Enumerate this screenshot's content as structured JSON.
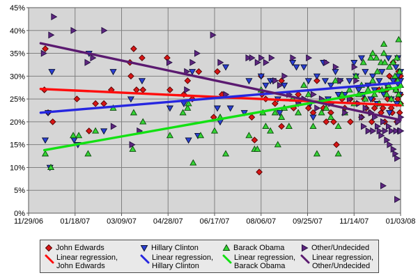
{
  "colors": {
    "canvas_bg": "#ffffff",
    "plot_bg": "#d6d6d6",
    "gridline": "#808080",
    "axis_line": "#5a5a5a",
    "axis_text": "#000000",
    "legend_bg": "#e9e9e9",
    "legend_border": "#4a4a4a"
  },
  "legend": {
    "regression_prefix": "Linear regression,"
  },
  "chart_data": {
    "type": "scatter",
    "title": "",
    "xlabel": "",
    "ylabel": "",
    "grid": true,
    "legend_position": "bottom",
    "x_axis": {
      "unit": "days since 11/29/06",
      "min_day": 0,
      "max_day": 400,
      "tick_days": [
        0,
        50,
        100,
        150,
        200,
        250,
        300,
        350,
        400
      ],
      "tick_labels": [
        "11/29/06",
        "01/18/07",
        "03/09/07",
        "04/28/07",
        "06/17/07",
        "08/06/07",
        "09/25/07",
        "11/14/07",
        "01/03/08"
      ]
    },
    "y_axis": {
      "min": 0,
      "max": 45,
      "step": 5,
      "tick_suffix": "%",
      "tick_labels": [
        "0%",
        "5%",
        "10%",
        "15%",
        "20%",
        "25%",
        "30%",
        "35%",
        "40%",
        "45%"
      ]
    },
    "series": [
      {
        "name": "John Edwards",
        "marker": "diamond",
        "marker_fill": "#d81616",
        "marker_stroke": "#500000",
        "points": [
          [
            17,
            27
          ],
          [
            18,
            36
          ],
          [
            21,
            22
          ],
          [
            26,
            20
          ],
          [
            52,
            25
          ],
          [
            65,
            18
          ],
          [
            72,
            24
          ],
          [
            81,
            24
          ],
          [
            89,
            27
          ],
          [
            109,
            33
          ],
          [
            110,
            30
          ],
          [
            113,
            36
          ],
          [
            116,
            27
          ],
          [
            122,
            34
          ],
          [
            123,
            27
          ],
          [
            149,
            34
          ],
          [
            152,
            27
          ],
          [
            167,
            26
          ],
          [
            171,
            29
          ],
          [
            176,
            25
          ],
          [
            183,
            31
          ],
          [
            199,
            21
          ],
          [
            203,
            31
          ],
          [
            208,
            26
          ],
          [
            240,
            21
          ],
          [
            243,
            16
          ],
          [
            248,
            9
          ],
          [
            250,
            30
          ],
          [
            251,
            26
          ],
          [
            255,
            25
          ],
          [
            265,
            24
          ],
          [
            272,
            29
          ],
          [
            272,
            19
          ],
          [
            285,
            23
          ],
          [
            290,
            26
          ],
          [
            301,
            23
          ],
          [
            306,
            22
          ],
          [
            310,
            29
          ],
          [
            317,
            23
          ],
          [
            320,
            20
          ],
          [
            325,
            22
          ],
          [
            328,
            20
          ],
          [
            331,
            15
          ],
          [
            337,
            25
          ],
          [
            340,
            23
          ],
          [
            346,
            25
          ],
          [
            346,
            20
          ],
          [
            353,
            24
          ],
          [
            358,
            21
          ],
          [
            361,
            25
          ],
          [
            363,
            23
          ],
          [
            367,
            22
          ],
          [
            369,
            20
          ],
          [
            370,
            25
          ],
          [
            372,
            23
          ],
          [
            377,
            27
          ],
          [
            379,
            22
          ],
          [
            381,
            23
          ],
          [
            383,
            20
          ],
          [
            385,
            27
          ],
          [
            386,
            25
          ],
          [
            388,
            30
          ],
          [
            390,
            23
          ],
          [
            391,
            22
          ],
          [
            392,
            33
          ],
          [
            394,
            29
          ],
          [
            395,
            27
          ],
          [
            396,
            20
          ],
          [
            397,
            25
          ],
          [
            398,
            31
          ],
          [
            399,
            22
          ],
          [
            400,
            26
          ],
          [
            400,
            30
          ],
          [
            400,
            24
          ]
        ]
      },
      {
        "name": "Hillary Clinton",
        "marker": "triangle-down",
        "marker_fill": "#2a3fd4",
        "marker_stroke": "#0a1030",
        "points": [
          [
            18,
            16
          ],
          [
            21,
            22
          ],
          [
            23,
            10
          ],
          [
            25,
            31
          ],
          [
            49,
            16
          ],
          [
            53,
            15
          ],
          [
            65,
            35
          ],
          [
            81,
            18
          ],
          [
            91,
            31
          ],
          [
            110,
            25
          ],
          [
            122,
            29
          ],
          [
            152,
            23
          ],
          [
            167,
            24
          ],
          [
            172,
            16
          ],
          [
            176,
            31
          ],
          [
            182,
            17
          ],
          [
            203,
            23
          ],
          [
            206,
            20
          ],
          [
            212,
            32
          ],
          [
            217,
            23
          ],
          [
            232,
            22
          ],
          [
            237,
            29
          ],
          [
            250,
            30
          ],
          [
            255,
            28
          ],
          [
            260,
            29
          ],
          [
            263,
            29
          ],
          [
            268,
            25
          ],
          [
            270,
            22
          ],
          [
            275,
            28
          ],
          [
            284,
            33
          ],
          [
            288,
            32
          ],
          [
            290,
            24
          ],
          [
            296,
            32
          ],
          [
            301,
            29
          ],
          [
            303,
            24
          ],
          [
            306,
            21
          ],
          [
            310,
            30
          ],
          [
            317,
            33
          ],
          [
            319,
            29
          ],
          [
            322,
            25
          ],
          [
            325,
            28
          ],
          [
            330,
            31
          ],
          [
            333,
            26
          ],
          [
            335,
            29
          ],
          [
            340,
            26
          ],
          [
            345,
            29
          ],
          [
            350,
            33
          ],
          [
            352,
            30
          ],
          [
            355,
            27
          ],
          [
            358,
            34
          ],
          [
            360,
            26
          ],
          [
            362,
            31
          ],
          [
            365,
            28
          ],
          [
            368,
            25
          ],
          [
            370,
            30
          ],
          [
            372,
            27
          ],
          [
            375,
            24
          ],
          [
            377,
            29
          ],
          [
            380,
            31
          ],
          [
            382,
            26
          ],
          [
            385,
            28
          ],
          [
            387,
            34
          ],
          [
            388,
            22
          ],
          [
            390,
            25
          ],
          [
            392,
            29
          ],
          [
            394,
            27
          ],
          [
            395,
            32
          ],
          [
            396,
            24
          ],
          [
            397,
            34
          ],
          [
            397,
            30
          ],
          [
            398,
            28
          ],
          [
            399,
            26
          ],
          [
            400,
            29
          ],
          [
            400,
            31
          ]
        ]
      },
      {
        "name": "Barack Obama",
        "marker": "triangle-up",
        "marker_fill": "#35d435",
        "marker_stroke": "#0a4a0a",
        "points": [
          [
            18,
            13
          ],
          [
            24,
            10
          ],
          [
            48,
            17
          ],
          [
            54,
            17
          ],
          [
            64,
            13
          ],
          [
            72,
            18
          ],
          [
            91,
            23
          ],
          [
            112,
            14
          ],
          [
            113,
            22
          ],
          [
            123,
            20
          ],
          [
            152,
            17
          ],
          [
            166,
            22
          ],
          [
            171,
            23
          ],
          [
            172,
            24
          ],
          [
            177,
            11
          ],
          [
            185,
            17
          ],
          [
            200,
            18
          ],
          [
            206,
            21
          ],
          [
            212,
            13
          ],
          [
            237,
            17
          ],
          [
            243,
            14
          ],
          [
            246,
            14
          ],
          [
            250,
            27
          ],
          [
            252,
            22
          ],
          [
            255,
            19
          ],
          [
            260,
            18
          ],
          [
            265,
            22
          ],
          [
            268,
            15
          ],
          [
            272,
            21
          ],
          [
            275,
            23
          ],
          [
            280,
            19
          ],
          [
            284,
            25
          ],
          [
            290,
            22
          ],
          [
            296,
            28
          ],
          [
            301,
            26
          ],
          [
            306,
            19
          ],
          [
            310,
            13
          ],
          [
            315,
            22
          ],
          [
            320,
            23
          ],
          [
            325,
            21
          ],
          [
            330,
            29
          ],
          [
            333,
            19
          ],
          [
            333,
            13
          ],
          [
            337,
            26
          ],
          [
            340,
            22
          ],
          [
            345,
            27
          ],
          [
            350,
            24
          ],
          [
            352,
            30
          ],
          [
            355,
            26
          ],
          [
            358,
            28
          ],
          [
            360,
            33
          ],
          [
            362,
            25
          ],
          [
            365,
            27
          ],
          [
            368,
            34
          ],
          [
            370,
            35
          ],
          [
            370,
            29
          ],
          [
            372,
            26
          ],
          [
            374,
            34
          ],
          [
            375,
            31
          ],
          [
            377,
            24
          ],
          [
            379,
            33
          ],
          [
            380,
            27
          ],
          [
            382,
            37
          ],
          [
            382,
            35
          ],
          [
            383,
            33
          ],
          [
            385,
            26
          ],
          [
            387,
            28
          ],
          [
            388,
            32
          ],
          [
            390,
            25
          ],
          [
            392,
            33
          ],
          [
            394,
            30
          ],
          [
            395,
            27
          ],
          [
            396,
            34
          ],
          [
            397,
            29
          ],
          [
            398,
            38
          ],
          [
            398,
            26
          ],
          [
            399,
            31
          ],
          [
            400,
            28
          ],
          [
            400,
            24
          ]
        ]
      },
      {
        "name": "Other/Undecided",
        "marker": "triangle-right",
        "marker_fill": "#5e2580",
        "marker_stroke": "#241040",
        "points": [
          [
            16,
            35
          ],
          [
            24,
            39
          ],
          [
            27,
            43
          ],
          [
            48,
            40
          ],
          [
            63,
            33
          ],
          [
            69,
            34
          ],
          [
            81,
            40
          ],
          [
            91,
            19
          ],
          [
            111,
            15
          ],
          [
            119,
            18
          ],
          [
            151,
            33
          ],
          [
            170,
            31
          ],
          [
            170,
            27
          ],
          [
            176,
            33
          ],
          [
            181,
            35
          ],
          [
            198,
            39
          ],
          [
            206,
            33
          ],
          [
            212,
            26
          ],
          [
            236,
            34
          ],
          [
            240,
            34
          ],
          [
            246,
            33
          ],
          [
            250,
            34
          ],
          [
            255,
            33
          ],
          [
            261,
            34
          ],
          [
            265,
            29
          ],
          [
            270,
            28
          ],
          [
            275,
            30
          ],
          [
            280,
            26
          ],
          [
            284,
            34
          ],
          [
            290,
            24
          ],
          [
            296,
            25
          ],
          [
            301,
            34
          ],
          [
            306,
            26
          ],
          [
            310,
            23
          ],
          [
            315,
            25
          ],
          [
            320,
            33
          ],
          [
            325,
            24
          ],
          [
            330,
            32
          ],
          [
            335,
            29
          ],
          [
            340,
            22
          ],
          [
            345,
            25
          ],
          [
            350,
            32
          ],
          [
            352,
            29
          ],
          [
            355,
            24
          ],
          [
            358,
            21
          ],
          [
            360,
            19
          ],
          [
            362,
            23
          ],
          [
            365,
            18
          ],
          [
            368,
            22
          ],
          [
            370,
            18
          ],
          [
            372,
            21
          ],
          [
            375,
            19
          ],
          [
            377,
            18
          ],
          [
            379,
            17
          ],
          [
            381,
            20
          ],
          [
            381,
            6
          ],
          [
            383,
            18
          ],
          [
            385,
            16
          ],
          [
            387,
            19
          ],
          [
            388,
            15
          ],
          [
            390,
            18
          ],
          [
            392,
            14
          ],
          [
            394,
            13
          ],
          [
            395,
            18
          ],
          [
            396,
            12
          ],
          [
            396,
            3
          ],
          [
            397,
            20
          ],
          [
            399,
            18
          ],
          [
            400,
            21
          ],
          [
            400,
            18
          ]
        ]
      }
    ],
    "regressions": [
      {
        "series": "John Edwards",
        "color": "#ff0d0d",
        "x": [
          13,
          400
        ],
        "y": [
          27.2,
          23.6
        ]
      },
      {
        "series": "Hillary Clinton",
        "color": "#2626e0",
        "x": [
          13,
          400
        ],
        "y": [
          22.0,
          28.6
        ]
      },
      {
        "series": "Barack Obama",
        "color": "#12e112",
        "x": [
          17,
          400
        ],
        "y": [
          13.8,
          27.6
        ]
      },
      {
        "series": "Other/Undecided",
        "color": "#5b1a70",
        "x": [
          13,
          400
        ],
        "y": [
          37.2,
          20.4
        ]
      }
    ]
  }
}
